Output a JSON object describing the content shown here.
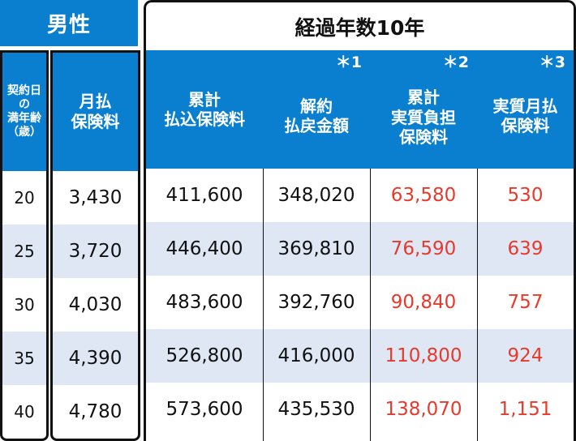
{
  "gender_label": "男性",
  "period_title": "経過年数10年",
  "headers": {
    "age": [
      "契約日",
      "の",
      "満年齢",
      "（歳）"
    ],
    "monthly": [
      "月払",
      "保険料"
    ],
    "cumulative": [
      "累計",
      "払込保険料"
    ],
    "surrender": [
      "解約",
      "払戻金額"
    ],
    "burden": [
      "累計",
      "実質負担",
      "保険料"
    ],
    "effective": [
      "実質月払",
      "保険料"
    ]
  },
  "notes": {
    "surrender": "＊1",
    "burden": "＊2",
    "effective": "＊3"
  },
  "rows": [
    {
      "age": "20",
      "monthly": "3,430",
      "cumulative": "411,600",
      "surrender": "348,020",
      "burden": "63,580",
      "effective": "530"
    },
    {
      "age": "25",
      "monthly": "3,720",
      "cumulative": "446,400",
      "surrender": "369,810",
      "burden": "76,590",
      "effective": "639"
    },
    {
      "age": "30",
      "monthly": "4,030",
      "cumulative": "483,600",
      "surrender": "392,760",
      "burden": "90,840",
      "effective": "757"
    },
    {
      "age": "35",
      "monthly": "4,390",
      "cumulative": "526,800",
      "surrender": "416,000",
      "burden": "110,800",
      "effective": "924"
    },
    {
      "age": "40",
      "monthly": "4,780",
      "cumulative": "573,600",
      "surrender": "435,530",
      "burden": "138,070",
      "effective": "1,151"
    }
  ],
  "colors": {
    "header_blue": "#0a7fd0",
    "alt_row": "#dfe7f5",
    "highlight_red": "#e63a2c",
    "border": "#111111"
  }
}
